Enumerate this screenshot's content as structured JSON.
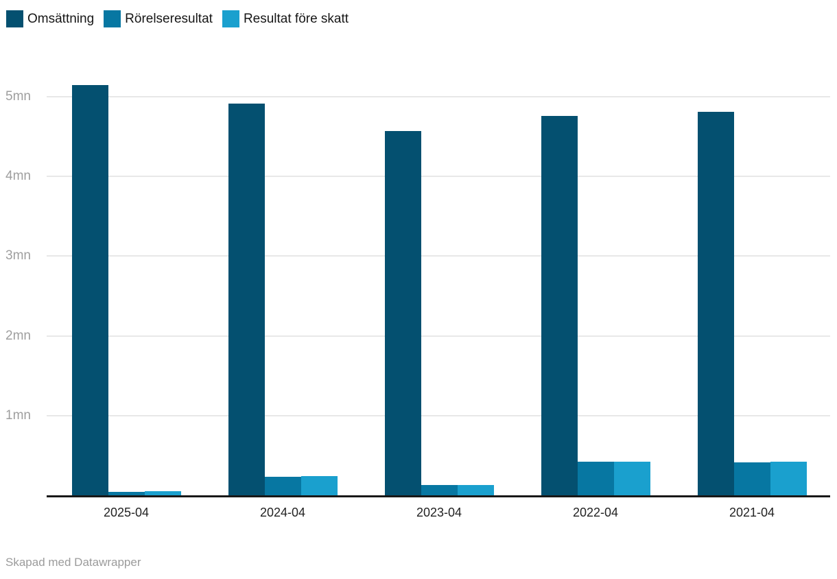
{
  "chart_data": {
    "type": "bar",
    "categories": [
      "2025-04",
      "2024-04",
      "2023-04",
      "2022-04",
      "2021-04"
    ],
    "series": [
      {
        "name": "Omsättning",
        "color": "#045070",
        "values": [
          5.15,
          4.91,
          4.57,
          4.76,
          4.81
        ]
      },
      {
        "name": "Rörelseresultat",
        "color": "#0777A2",
        "values": [
          0.04,
          0.23,
          0.13,
          0.42,
          0.41
        ]
      },
      {
        "name": "Resultat före skatt",
        "color": "#1AA0CE",
        "values": [
          0.05,
          0.24,
          0.13,
          0.42,
          0.42
        ]
      }
    ],
    "unit": "mn",
    "y_ticks": [
      1,
      2,
      3,
      4,
      5
    ],
    "y_tick_labels": [
      "1mn",
      "2mn",
      "3mn",
      "4mn",
      "5mn"
    ],
    "ylim": [
      0,
      5.35
    ],
    "grid": true,
    "legend_position": "top",
    "axis_color": "#181818",
    "gridline_color": "#e8e8e8"
  },
  "footer": {
    "credit": "Skapad med Datawrapper"
  }
}
